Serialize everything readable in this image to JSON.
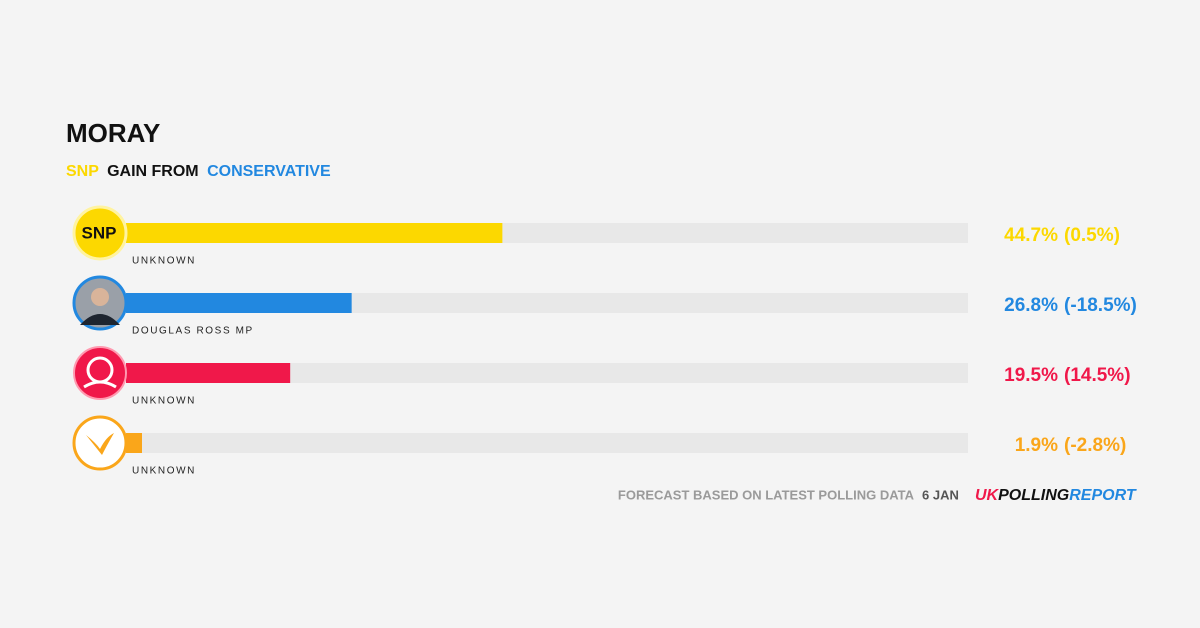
{
  "chart_data": {
    "type": "bar",
    "orientation": "horizontal",
    "title": "MORAY",
    "subtitle": {
      "winner": "SNP",
      "middle": "GAIN FROM",
      "loser": "CONSERVATIVE",
      "winner_color": "#fcd800",
      "loser_color": "#2288e0"
    },
    "categories": [
      "UNKNOWN",
      "DOUGLAS ROSS MP",
      "UNKNOWN",
      "UNKNOWN"
    ],
    "values": [
      44.7,
      26.8,
      19.5,
      1.9
    ],
    "value_labels": [
      "44.7%",
      "26.8%",
      "19.5%",
      "1.9%"
    ],
    "changes": [
      0.5,
      -18.5,
      14.5,
      -2.8
    ],
    "change_labels": [
      "(0.5%)",
      "(-18.5%)",
      "(14.5%)",
      "(-2.8%)"
    ],
    "colors": [
      "#fcd800",
      "#2288e0",
      "#f0184a",
      "#faa61a"
    ],
    "xlim": [
      0,
      100
    ],
    "footer": {
      "note": "FORECAST BASED ON LATEST POLLING DATA",
      "date": "6 JAN",
      "brand": [
        "UK",
        "POLLING",
        "REPORT"
      ],
      "brand_colors": [
        "#f0184a",
        "#111111",
        "#2288e0"
      ]
    }
  }
}
